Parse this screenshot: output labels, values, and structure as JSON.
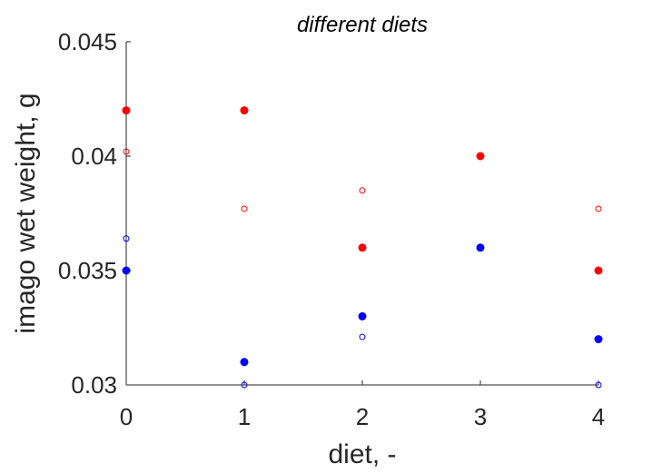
{
  "chart_data": {
    "type": "scatter",
    "title": "different diets",
    "xlabel": "diet, -",
    "ylabel": "imago wet weight, g",
    "xlim": [
      0,
      4
    ],
    "ylim": [
      0.03,
      0.045
    ],
    "xticks": [
      "0",
      "1",
      "2",
      "3",
      "4"
    ],
    "yticks": [
      "0.03",
      "0.035",
      "0.04",
      "0.045"
    ],
    "grid": false,
    "series": [
      {
        "color": "#ff0000",
        "marker": "filled",
        "x": [
          0,
          1,
          2,
          3,
          4
        ],
        "y": [
          0.042,
          0.042,
          0.036,
          0.04,
          0.035
        ]
      },
      {
        "color": "#ff0000",
        "marker": "open",
        "x": [
          0,
          1,
          2,
          3,
          4
        ],
        "y": [
          0.0402,
          0.0377,
          0.0385,
          0.036,
          0.0377
        ]
      },
      {
        "color": "#0000ff",
        "marker": "filled",
        "x": [
          0,
          1,
          2,
          3,
          4
        ],
        "y": [
          0.035,
          0.031,
          0.033,
          0.036,
          0.032
        ]
      },
      {
        "color": "#0000ff",
        "marker": "open",
        "x": [
          0,
          1,
          2,
          3,
          4
        ],
        "y": [
          0.0364,
          0.03,
          0.0321,
          0.036,
          0.03
        ]
      }
    ]
  }
}
